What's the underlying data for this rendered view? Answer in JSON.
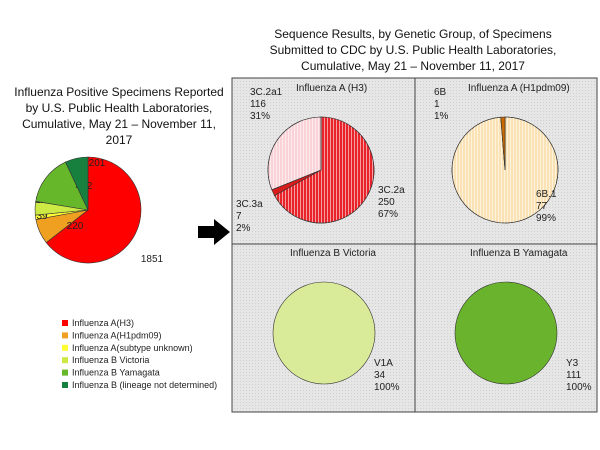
{
  "chart_data": [
    {
      "type": "pie",
      "title": "Influenza Positive Specimens Reported by U.S. Public Health Laboratories, Cumulative, May 21 – November 11, 2017",
      "categories": [
        "Influenza A(H3)",
        "Influenza A(H1pdm09)",
        "Influenza A(subtype unknown)",
        "Influenza B Victoria",
        "Influenza B Yamagata",
        "Influenza B (lineage not determined)"
      ],
      "values": [
        1851,
        220,
        39,
        119,
        442,
        201
      ],
      "colors": [
        "#ff0000",
        "#f0a020",
        "#ffff33",
        "#cdea44",
        "#66b82a",
        "#17803f"
      ],
      "legend": "bottom"
    },
    {
      "type": "pie",
      "title": "Influenza A (H3)",
      "categories": [
        "3C.2a",
        "3C.3a",
        "3C.2a1"
      ],
      "values": [
        250,
        7,
        116
      ],
      "percent_labels": [
        "67%",
        "2%",
        "31%"
      ],
      "colors": [
        "#e8242a",
        "#d81b1b",
        "#f9d3d8"
      ]
    },
    {
      "type": "pie",
      "title": "Influenza A (H1pdm09)",
      "categories": [
        "6B.1",
        "6B"
      ],
      "values": [
        77,
        1
      ],
      "percent_labels": [
        "99%",
        "1%"
      ],
      "colors": [
        "#fbe2b4",
        "#c86a00"
      ]
    },
    {
      "type": "pie",
      "title": "Influenza B Victoria",
      "categories": [
        "V1A"
      ],
      "values": [
        34
      ],
      "percent_labels": [
        "100%"
      ],
      "colors": [
        "#d9ea98"
      ]
    },
    {
      "type": "pie",
      "title": "Influenza B Yamagata",
      "categories": [
        "Y3"
      ],
      "values": [
        111
      ],
      "percent_labels": [
        "100%"
      ],
      "colors": [
        "#6ab42d"
      ]
    }
  ],
  "right_panel": {
    "title": "Sequence Results, by Genetic Group, of Specimens Submitted to CDC by U.S. Public Health Laboratories, Cumulative, May 21 – November 11, 2017"
  }
}
